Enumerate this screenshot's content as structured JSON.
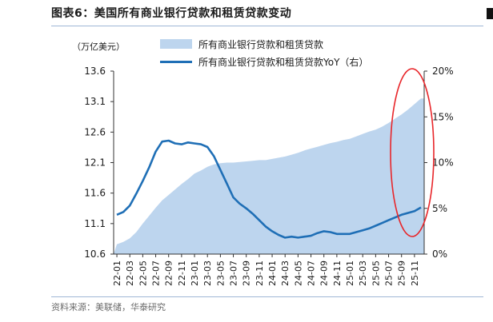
{
  "header": {
    "figure_label": "图表6：",
    "title": "美国所有商业银行贷款和租赁贷款变动"
  },
  "source_text": "资料来源：美联储，华泰研究",
  "chart_data": {
    "type": "area",
    "unit_label": "（万亿美元）",
    "legend": [
      {
        "label": "所有商业银行贷款和租赁贷款",
        "kind": "area",
        "color": "#bdd5ee"
      },
      {
        "label": "所有商业银行贷款和租赁贷款YoY（右）",
        "kind": "line",
        "color": "#1f6fb6"
      }
    ],
    "x_ticks": [
      "22-01",
      "22-03",
      "22-05",
      "22-07",
      "22-09",
      "22-11",
      "23-01",
      "23-03",
      "23-05",
      "23-07",
      "23-09",
      "23-11",
      "24-01",
      "24-03",
      "24-05",
      "24-07",
      "24-09",
      "24-11",
      "25-01",
      "25-03",
      "25-05",
      "25-07",
      "25-09",
      "25-11"
    ],
    "x_range": [
      "22-01",
      "25-12"
    ],
    "y_left": {
      "min": 10.6,
      "max": 13.6,
      "ticks": [
        "13.6",
        "13.1",
        "12.6",
        "12.1",
        "11.6",
        "11.1",
        "10.6"
      ]
    },
    "y_right": {
      "min": 0,
      "max": 20,
      "ticks": [
        "20%",
        "15%",
        "10%",
        "5%",
        "0%"
      ]
    },
    "series": [
      {
        "name": "所有商业银行贷款和租赁贷款",
        "axis": "left",
        "months": 48,
        "values": [
          10.76,
          10.8,
          10.86,
          10.96,
          11.1,
          11.23,
          11.36,
          11.48,
          11.57,
          11.66,
          11.75,
          11.83,
          11.92,
          11.97,
          12.03,
          12.07,
          12.09,
          12.1,
          12.1,
          12.11,
          12.12,
          12.13,
          12.14,
          12.14,
          12.16,
          12.18,
          12.2,
          12.23,
          12.26,
          12.3,
          12.33,
          12.36,
          12.39,
          12.42,
          12.44,
          12.47,
          12.49,
          12.53,
          12.57,
          12.61,
          12.64,
          12.69,
          12.75,
          12.82,
          12.89,
          12.97,
          13.06,
          13.15
        ]
      },
      {
        "name": "所有商业银行贷款和租赁贷款YoY（右）",
        "axis": "right",
        "months": 48,
        "values": [
          4.3,
          4.6,
          5.3,
          6.6,
          8.0,
          9.5,
          11.2,
          12.3,
          12.4,
          12.1,
          12.0,
          12.2,
          12.1,
          12.0,
          11.7,
          10.7,
          9.2,
          7.7,
          6.2,
          5.5,
          5.0,
          4.4,
          3.7,
          3.0,
          2.5,
          2.1,
          1.8,
          1.9,
          1.8,
          1.9,
          2.0,
          2.3,
          2.5,
          2.4,
          2.2,
          2.2,
          2.2,
          2.4,
          2.6,
          2.8,
          3.1,
          3.4,
          3.7,
          4.0,
          4.3,
          4.5,
          4.7,
          5.1
        ]
      }
    ]
  }
}
